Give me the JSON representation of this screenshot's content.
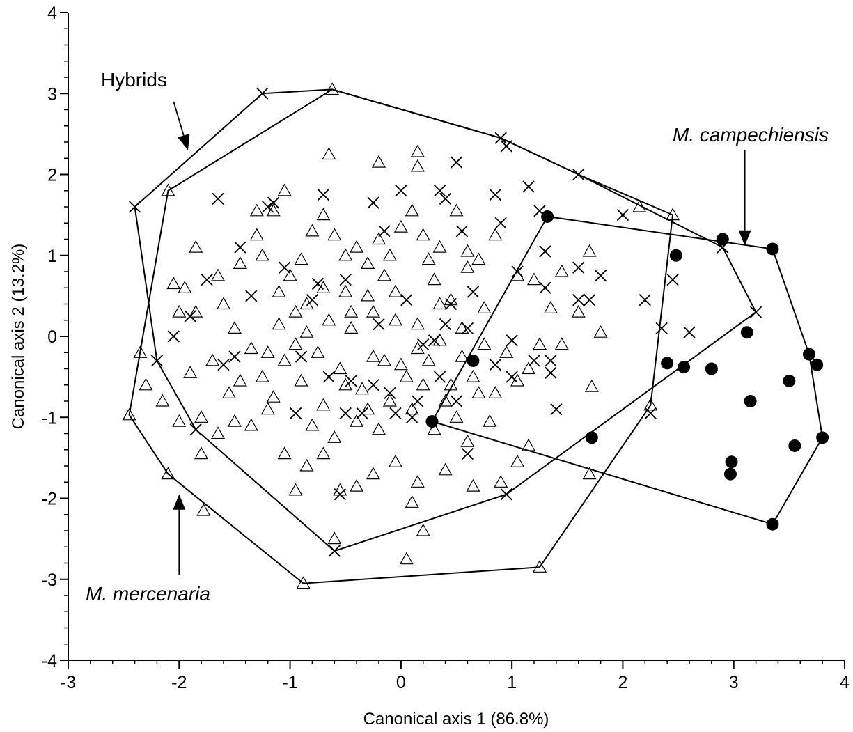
{
  "chart_data": {
    "type": "scatter",
    "xlabel": "Canonical axis 1 (86.8%)",
    "ylabel": "Canonical axis 2 (13.2%)",
    "xlim": [
      -3,
      4
    ],
    "ylim": [
      -4,
      4
    ],
    "x_ticks": [
      "-3",
      "-2",
      "-1",
      "0",
      "1",
      "2",
      "3",
      "4"
    ],
    "y_ticks": [
      "-4",
      "-3",
      "-2",
      "-1",
      "0",
      "1",
      "2",
      "3",
      "4"
    ],
    "grid": false,
    "annotations": [
      {
        "text": "Hybrids",
        "italic": false,
        "arrow_from": [
          -2.05,
          2.9
        ],
        "arrow_to": [
          -1.92,
          2.3
        ]
      },
      {
        "text": "M. campechiensis",
        "italic": true,
        "arrow_from": [
          3.1,
          2.3
        ],
        "arrow_to": [
          3.1,
          1.12
        ]
      },
      {
        "text": "M. mercenaria",
        "italic": true,
        "arrow_from": [
          -2.0,
          -2.95
        ],
        "arrow_to": [
          -2.0,
          -1.95
        ]
      }
    ],
    "series": [
      {
        "marker": "triangle-open",
        "hull": [
          [
            -0.62,
            3.05
          ],
          [
            0.9,
            2.45
          ],
          [
            1.6,
            2.0
          ],
          [
            2.45,
            1.5
          ],
          [
            2.25,
            -0.85
          ],
          [
            1.25,
            -2.85
          ],
          [
            -0.88,
            -3.05
          ],
          [
            -2.1,
            -1.7
          ],
          [
            -2.45,
            -0.97
          ],
          [
            -2.1,
            1.8
          ]
        ],
        "points": [
          [
            -0.62,
            3.05
          ],
          [
            2.45,
            1.5
          ],
          [
            2.25,
            -0.85
          ],
          [
            1.25,
            -2.85
          ],
          [
            -0.88,
            -3.05
          ],
          [
            -2.1,
            -1.7
          ],
          [
            -2.45,
            -0.97
          ],
          [
            -2.1,
            1.8
          ],
          [
            -1.78,
            -2.15
          ],
          [
            -0.6,
            -2.5
          ],
          [
            0.05,
            -2.75
          ],
          [
            0.2,
            -2.4
          ],
          [
            1.7,
            -1.7
          ],
          [
            2.15,
            1.6
          ],
          [
            -0.65,
            2.25
          ],
          [
            0.15,
            2.28
          ],
          [
            -0.2,
            2.15
          ],
          [
            0.15,
            2.1
          ],
          [
            -1.05,
            1.8
          ],
          [
            -1.15,
            1.55
          ],
          [
            -1.3,
            1.55
          ],
          [
            -1.85,
            1.1
          ],
          [
            -1.95,
            0.6
          ],
          [
            -2.05,
            0.65
          ],
          [
            -2.35,
            -0.2
          ],
          [
            -2.3,
            -0.6
          ],
          [
            -2.15,
            -0.8
          ],
          [
            -2.0,
            -1.05
          ],
          [
            -1.8,
            -1.0
          ],
          [
            -1.8,
            -1.45
          ],
          [
            -1.65,
            -1.2
          ],
          [
            -1.5,
            -1.05
          ],
          [
            -1.35,
            -1.1
          ],
          [
            -1.2,
            -0.9
          ],
          [
            -1.05,
            -1.45
          ],
          [
            -0.95,
            -1.9
          ],
          [
            -0.85,
            -1.6
          ],
          [
            -0.7,
            -1.45
          ],
          [
            -0.55,
            -1.9
          ],
          [
            -0.4,
            -1.85
          ],
          [
            -0.25,
            -1.7
          ],
          [
            -0.05,
            -1.55
          ],
          [
            0.15,
            -1.8
          ],
          [
            0.1,
            -2.05
          ],
          [
            0.4,
            -1.65
          ],
          [
            0.65,
            -1.85
          ],
          [
            0.9,
            -1.8
          ],
          [
            1.05,
            -1.55
          ],
          [
            1.15,
            -1.35
          ],
          [
            -1.45,
            0.9
          ],
          [
            -1.3,
            1.25
          ],
          [
            -1.25,
            1.0
          ],
          [
            -1.1,
            0.55
          ],
          [
            -1.0,
            0.75
          ],
          [
            -0.9,
            0.95
          ],
          [
            -0.8,
            1.3
          ],
          [
            -0.7,
            1.5
          ],
          [
            -0.6,
            1.25
          ],
          [
            -0.5,
            1.0
          ],
          [
            -0.4,
            1.1
          ],
          [
            -0.3,
            0.9
          ],
          [
            -0.2,
            1.2
          ],
          [
            -0.1,
            1.0
          ],
          [
            0.0,
            1.35
          ],
          [
            0.1,
            1.55
          ],
          [
            0.2,
            1.25
          ],
          [
            0.35,
            1.1
          ],
          [
            0.5,
            1.55
          ],
          [
            0.6,
            1.05
          ],
          [
            0.7,
            0.95
          ],
          [
            0.85,
            1.25
          ],
          [
            1.05,
            0.75
          ],
          [
            1.2,
            0.7
          ],
          [
            1.45,
            0.8
          ],
          [
            1.7,
            1.05
          ],
          [
            1.6,
            0.3
          ],
          [
            1.8,
            0.05
          ],
          [
            -1.6,
            0.4
          ],
          [
            -1.5,
            0.1
          ],
          [
            -1.35,
            -0.15
          ],
          [
            -1.25,
            -0.5
          ],
          [
            -1.15,
            -0.75
          ],
          [
            -1.05,
            -0.3
          ],
          [
            -0.95,
            0.3
          ],
          [
            -0.85,
            0.05
          ],
          [
            -0.75,
            -0.2
          ],
          [
            -0.65,
            0.2
          ],
          [
            -0.55,
            -0.4
          ],
          [
            -0.45,
            0.1
          ],
          [
            -0.35,
            -0.65
          ],
          [
            -0.25,
            0.3
          ],
          [
            -0.15,
            -0.3
          ],
          [
            -0.05,
            0.55
          ],
          [
            0.05,
            -0.5
          ],
          [
            0.15,
            0.15
          ],
          [
            0.25,
            -0.3
          ],
          [
            0.35,
            0.4
          ],
          [
            0.45,
            -0.6
          ],
          [
            0.55,
            0.1
          ],
          [
            0.65,
            -0.5
          ],
          [
            0.75,
            0.35
          ],
          [
            0.85,
            -0.7
          ],
          [
            0.95,
            -0.2
          ],
          [
            1.05,
            -0.55
          ],
          [
            1.15,
            -0.4
          ],
          [
            1.25,
            -0.1
          ],
          [
            1.35,
            0.35
          ],
          [
            1.45,
            -0.1
          ],
          [
            1.72,
            -0.62
          ],
          [
            -0.9,
            -0.55
          ],
          [
            -0.8,
            -1.1
          ],
          [
            -0.7,
            -0.85
          ],
          [
            -0.6,
            -1.25
          ],
          [
            -0.5,
            -0.6
          ],
          [
            -0.4,
            -1.05
          ],
          [
            -0.3,
            -0.9
          ],
          [
            -0.2,
            -1.15
          ],
          [
            -0.1,
            -0.8
          ],
          [
            0.0,
            -0.35
          ],
          [
            0.1,
            -0.9
          ],
          [
            0.2,
            -0.6
          ],
          [
            0.3,
            -1.15
          ],
          [
            0.4,
            -0.8
          ],
          [
            0.5,
            -1.0
          ],
          [
            0.6,
            -1.3
          ],
          [
            0.7,
            -0.7
          ],
          [
            0.8,
            -1.05
          ],
          [
            -1.7,
            -0.3
          ],
          [
            -1.55,
            -0.7
          ],
          [
            -1.45,
            -0.55
          ],
          [
            -1.65,
            0.75
          ],
          [
            -1.85,
            0.3
          ],
          [
            -2.0,
            0.3
          ],
          [
            -1.9,
            -0.45
          ],
          [
            -0.5,
            0.55
          ],
          [
            -0.3,
            0.5
          ],
          [
            -0.15,
            0.75
          ],
          [
            0.3,
            0.7
          ],
          [
            0.45,
            0.45
          ],
          [
            0.6,
            0.85
          ],
          [
            0.75,
            -0.1
          ],
          [
            0.25,
            0.95
          ],
          [
            -0.45,
            0.3
          ],
          [
            -0.05,
            0.2
          ],
          [
            0.35,
            -0.05
          ],
          [
            0.55,
            -0.25
          ],
          [
            0.15,
            -0.15
          ],
          [
            -0.25,
            -0.25
          ],
          [
            -0.7,
            0.6
          ],
          [
            -0.85,
            0.4
          ],
          [
            -1.1,
            0.15
          ],
          [
            -1.2,
            -0.2
          ],
          [
            -0.95,
            -0.1
          ]
        ]
      },
      {
        "marker": "cross",
        "hull": [
          [
            -1.25,
            3.0
          ],
          [
            -2.4,
            1.6
          ],
          [
            -2.2,
            -0.3
          ],
          [
            -1.85,
            -1.15
          ],
          [
            -0.6,
            -2.65
          ],
          [
            0.95,
            -1.95
          ],
          [
            3.2,
            0.3
          ],
          [
            2.9,
            1.1
          ],
          [
            1.6,
            2.0
          ],
          [
            0.9,
            2.45
          ],
          [
            -0.62,
            3.05
          ]
        ],
        "points": [
          [
            -1.25,
            3.0
          ],
          [
            -2.4,
            1.6
          ],
          [
            -2.2,
            -0.3
          ],
          [
            -1.85,
            -1.15
          ],
          [
            -0.6,
            -2.65
          ],
          [
            0.95,
            -1.95
          ],
          [
            3.2,
            0.3
          ],
          [
            2.9,
            1.1
          ],
          [
            0.9,
            2.45
          ],
          [
            0.95,
            2.35
          ],
          [
            1.6,
            2.0
          ],
          [
            2.0,
            1.5
          ],
          [
            1.25,
            1.55
          ],
          [
            1.3,
            1.05
          ],
          [
            1.15,
            1.85
          ],
          [
            0.5,
            2.15
          ],
          [
            0.35,
            1.8
          ],
          [
            0.4,
            1.7
          ],
          [
            -0.25,
            1.65
          ],
          [
            -0.7,
            1.75
          ],
          [
            -1.15,
            1.65
          ],
          [
            -1.65,
            1.7
          ],
          [
            -1.45,
            1.1
          ],
          [
            -1.05,
            0.85
          ],
          [
            -0.75,
            0.65
          ],
          [
            -1.75,
            0.7
          ],
          [
            -1.9,
            0.25
          ],
          [
            -2.05,
            0.0
          ],
          [
            -1.6,
            -0.35
          ],
          [
            -1.5,
            -0.25
          ],
          [
            -0.45,
            -0.55
          ],
          [
            -0.9,
            -0.25
          ],
          [
            -0.65,
            -0.5
          ],
          [
            -0.25,
            -0.6
          ],
          [
            -0.05,
            -0.95
          ],
          [
            0.15,
            -0.8
          ],
          [
            0.35,
            -0.5
          ],
          [
            0.5,
            -0.8
          ],
          [
            0.65,
            0.55
          ],
          [
            0.85,
            -0.35
          ],
          [
            1.0,
            -0.05
          ],
          [
            1.2,
            -0.3
          ],
          [
            1.35,
            -0.45
          ],
          [
            1.6,
            0.85
          ],
          [
            1.7,
            0.45
          ],
          [
            1.8,
            0.75
          ],
          [
            2.2,
            0.45
          ],
          [
            2.35,
            0.1
          ],
          [
            2.45,
            0.7
          ],
          [
            2.6,
            0.05
          ],
          [
            2.25,
            -0.95
          ],
          [
            1.4,
            -0.9
          ],
          [
            0.6,
            -1.45
          ],
          [
            -0.55,
            -1.95
          ],
          [
            -0.95,
            -0.95
          ],
          [
            -0.5,
            -0.95
          ],
          [
            -0.1,
            -0.7
          ],
          [
            0.05,
            0.45
          ],
          [
            0.4,
            0.15
          ],
          [
            0.2,
            -0.1
          ],
          [
            -0.2,
            0.15
          ],
          [
            -0.5,
            0.7
          ],
          [
            -0.8,
            0.45
          ],
          [
            -1.2,
            1.6
          ],
          [
            -1.35,
            0.5
          ],
          [
            0.55,
            1.3
          ],
          [
            -0.15,
            1.3
          ],
          [
            0.0,
            1.8
          ],
          [
            0.85,
            1.75
          ],
          [
            0.9,
            1.4
          ],
          [
            1.05,
            0.8
          ],
          [
            1.3,
            0.6
          ],
          [
            1.35,
            -0.3
          ],
          [
            1.6,
            0.45
          ],
          [
            1.0,
            -0.5
          ],
          [
            0.1,
            -1.0
          ],
          [
            -0.35,
            -0.95
          ],
          [
            0.45,
            0.4
          ],
          [
            0.3,
            -0.05
          ],
          [
            0.6,
            0.1
          ]
        ]
      },
      {
        "marker": "dot",
        "hull": [
          [
            1.32,
            1.48
          ],
          [
            3.35,
            1.08
          ],
          [
            3.68,
            -0.22
          ],
          [
            3.8,
            -1.25
          ],
          [
            3.35,
            -2.32
          ],
          [
            0.28,
            -1.05
          ]
        ],
        "points": [
          [
            1.32,
            1.48
          ],
          [
            2.9,
            1.2
          ],
          [
            3.35,
            1.08
          ],
          [
            2.48,
            1.0
          ],
          [
            3.12,
            0.05
          ],
          [
            3.68,
            -0.22
          ],
          [
            3.75,
            -0.35
          ],
          [
            2.4,
            -0.33
          ],
          [
            2.55,
            -0.38
          ],
          [
            2.8,
            -0.4
          ],
          [
            3.5,
            -0.55
          ],
          [
            3.15,
            -0.8
          ],
          [
            3.8,
            -1.25
          ],
          [
            3.55,
            -1.35
          ],
          [
            2.98,
            -1.55
          ],
          [
            2.97,
            -1.7
          ],
          [
            3.35,
            -2.32
          ],
          [
            0.65,
            -0.3
          ],
          [
            0.28,
            -1.05
          ],
          [
            1.72,
            -1.25
          ]
        ]
      }
    ]
  }
}
